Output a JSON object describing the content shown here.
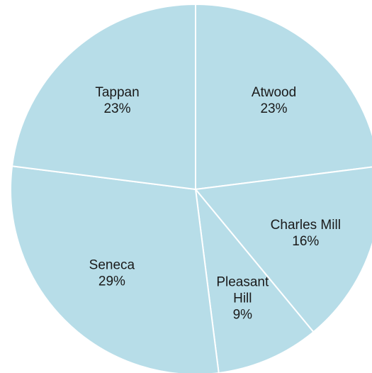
{
  "chart_data": {
    "type": "pie",
    "title": "",
    "slices": [
      {
        "label_lines": [
          "Atwood"
        ],
        "value": 23,
        "value_text": "23%"
      },
      {
        "label_lines": [
          "Charles Mill"
        ],
        "value": 16,
        "value_text": "16%"
      },
      {
        "label_lines": [
          "Pleasant",
          "Hill"
        ],
        "value": 9,
        "value_text": "9%"
      },
      {
        "label_lines": [
          "Seneca"
        ],
        "value": 29,
        "value_text": "29%"
      },
      {
        "label_lines": [
          "Tappan"
        ],
        "value": 23,
        "value_text": "23%"
      }
    ],
    "start_angle": "12 o'clock",
    "direction": "clockwise",
    "legend": "none",
    "colors": {
      "slice_fill": "#b7dde8",
      "slice_border": "#ffffff"
    }
  }
}
